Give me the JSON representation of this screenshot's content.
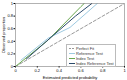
{
  "chart_data": {
    "type": "line",
    "x_label": "Estimated predicted probability",
    "y_label": "Observed proportion",
    "xlim": [
      0,
      1
    ],
    "ylim": [
      0,
      1
    ],
    "xticks": [
      0,
      0.2,
      0.4,
      0.6,
      0.8,
      1
    ],
    "yticks": [
      0,
      0.2,
      0.4,
      0.6,
      0.8,
      1
    ],
    "grid": false,
    "legend": "lower right",
    "series": [
      {
        "name": "Perfect Fit",
        "color": "#999999",
        "line_style": "dashed",
        "x": [
          0,
          1
        ],
        "values": [
          0,
          1
        ]
      },
      {
        "name": "Reference Test",
        "color": "#9ecae1",
        "line_style": "solid",
        "x": [
          0.05,
          0.3,
          0.5,
          0.75
        ],
        "values": [
          0.1,
          0.45,
          0.62,
          1
        ]
      },
      {
        "name": "Index Test",
        "color": "#6aa84f",
        "line_style": "solid",
        "x": [
          0,
          0.3,
          0.6,
          0.63
        ],
        "values": [
          0,
          0.42,
          0.95,
          1
        ]
      },
      {
        "name": "Index Reference Test",
        "color": "#2b4a6b",
        "line_style": "solid",
        "x": [
          0.1,
          0.35,
          0.55,
          0.7
        ],
        "values": [
          0.12,
          0.5,
          0.8,
          1
        ]
      }
    ]
  }
}
